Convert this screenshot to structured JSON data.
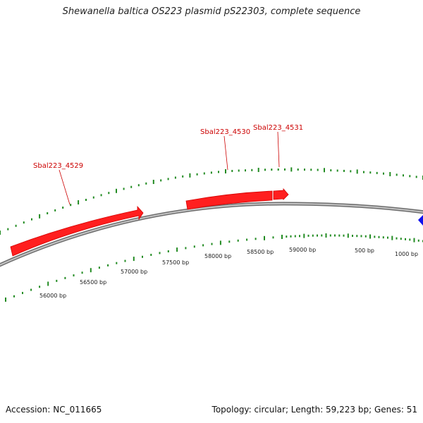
{
  "title": "Shewanella baltica OS223 plasmid pS22303, complete sequence",
  "accession": "Accession: NC_011665",
  "summary": "Topology: circular; Length: 59,223 bp; Genes: 51",
  "colors": {
    "backbone": "#8a8a8a",
    "gene": "#ff1f1f",
    "gene_label": "#cc0000",
    "ticks": "#228b22",
    "marker": "#1010ee"
  },
  "genes": [
    {
      "id": "g4529",
      "label": "Sbal223_4529",
      "strand": "forward"
    },
    {
      "id": "g4530",
      "label": "Sbal223_4530",
      "strand": "forward"
    },
    {
      "id": "g4531",
      "label": "Sbal223_4531",
      "strand": "forward"
    }
  ],
  "scale_labels": [
    "56000 bp",
    "56500 bp",
    "57000 bp",
    "57500 bp",
    "58000 bp",
    "58500 bp",
    "59000 bp",
    "500 bp",
    "1000 bp"
  ],
  "marker_icon": "blue-diamond-icon"
}
